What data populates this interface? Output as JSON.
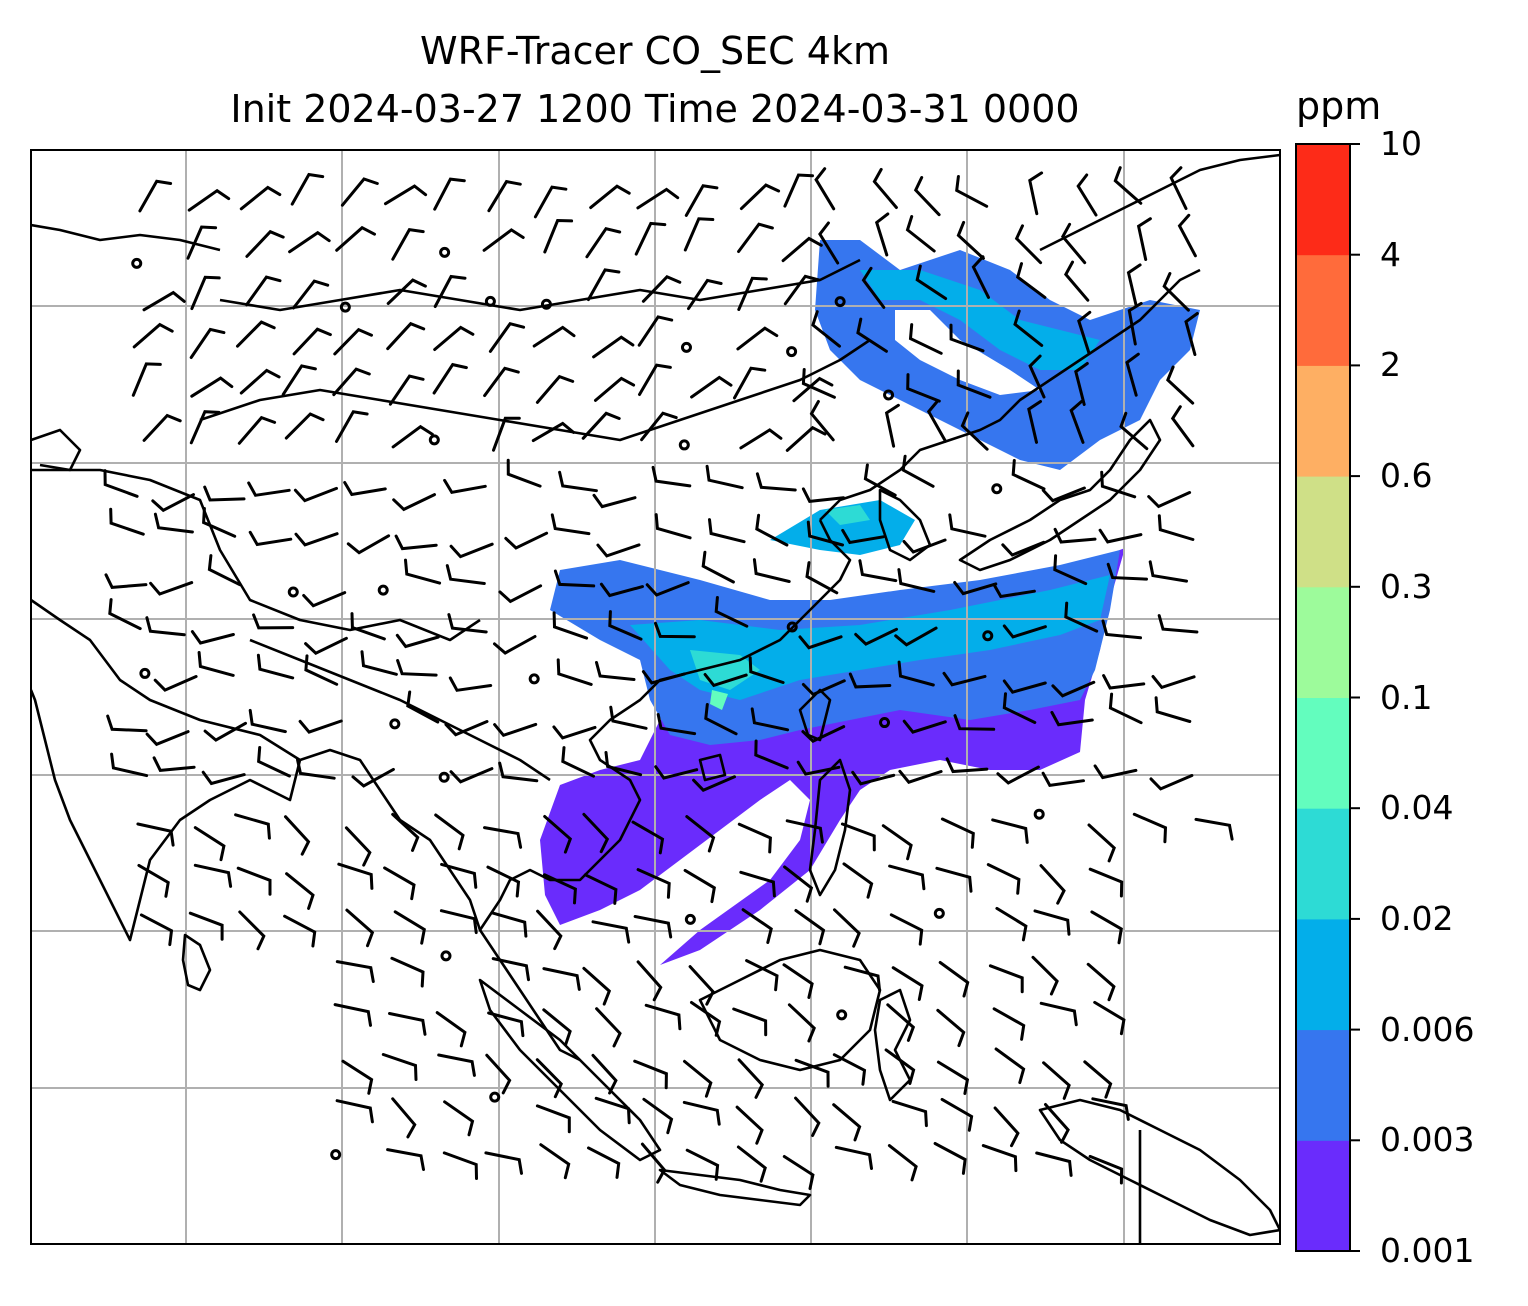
{
  "title": {
    "line1": "WRF-Tracer CO_SEC 4km",
    "line2": "Init 2024-03-27 1200 Time 2024-03-31 0000"
  },
  "colorbar": {
    "unit": "ppm",
    "levels": [
      "0.001",
      "0.003",
      "0.006",
      "0.02",
      "0.04",
      "0.1",
      "0.3",
      "0.6",
      "2",
      "4",
      "10"
    ],
    "colors": [
      "#6a2cfc",
      "#3676ef",
      "#03aeea",
      "#2ddbd5",
      "#63fdbe",
      "#9dfb9b",
      "#cfe087",
      "#feaf63",
      "#ff6b3b",
      "#fd2b18"
    ]
  },
  "map": {
    "layers": [
      "coastlines",
      "country-borders",
      "gridlines",
      "wind-barbs",
      "tracer-plume"
    ],
    "colors": {
      "gridline": "#b0b0b0",
      "coast": "#000000",
      "barb": "#000000"
    }
  }
}
